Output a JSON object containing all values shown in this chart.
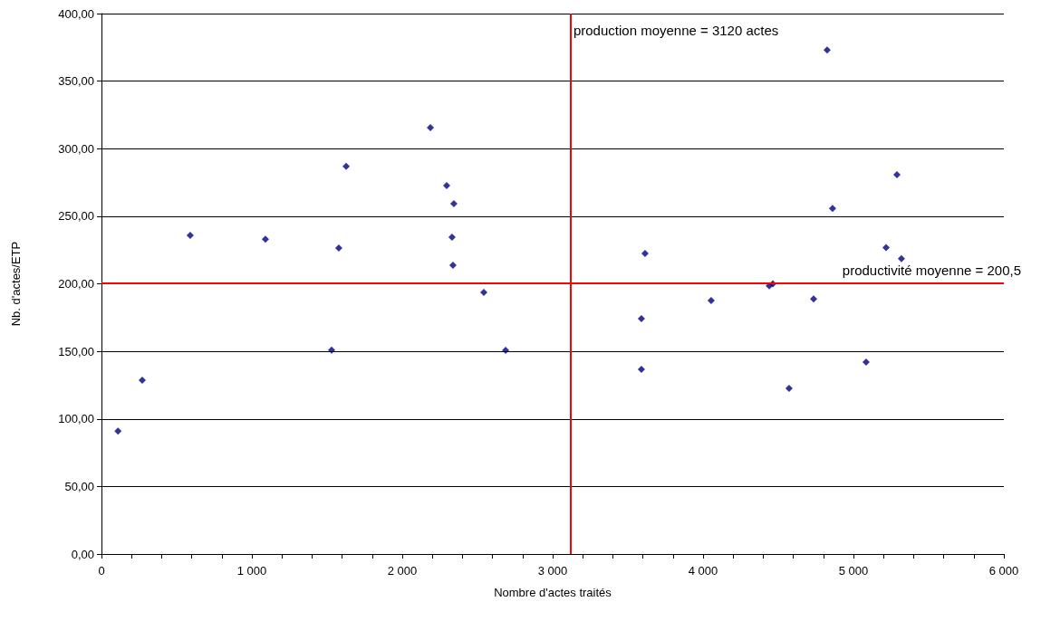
{
  "chart_data": {
    "type": "scatter",
    "xlabel": "Nombre d'actes traités",
    "ylabel": "Nb. d'actes/ETP",
    "x": [
      110,
      271,
      590,
      1090,
      1578,
      1627,
      1530,
      2187,
      2295,
      2343,
      2331,
      2337,
      2542,
      2687,
      3590,
      3590,
      3614,
      4054,
      4440,
      4464,
      4572,
      4735,
      4825,
      4861,
      5084,
      5217,
      5289,
      5319
    ],
    "series": [
      {
        "color": "#000080",
        "values": [
          91,
          128.6,
          235.8,
          233,
          226.5,
          287,
          151,
          315.6,
          272.7,
          259.3,
          234.5,
          213.7,
          193.6,
          150.7,
          136.7,
          174.2,
          222.5,
          187.6,
          198.5,
          200,
          122.6,
          188.7,
          373,
          255.8,
          142,
          226.8,
          280.7,
          218.6
        ]
      }
    ],
    "xlim": [
      0,
      6000
    ],
    "xticks": [
      {
        "value": 0,
        "label": "0"
      },
      {
        "value": 200,
        "label": null
      },
      {
        "value": 400,
        "label": null
      },
      {
        "value": 600,
        "label": null
      },
      {
        "value": 800,
        "label": null
      },
      {
        "value": 1000,
        "label": "1 000"
      },
      {
        "value": 1200,
        "label": null
      },
      {
        "value": 1400,
        "label": null
      },
      {
        "value": 1600,
        "label": null
      },
      {
        "value": 1800,
        "label": null
      },
      {
        "value": 2000,
        "label": "2 000"
      },
      {
        "value": 2200,
        "label": null
      },
      {
        "value": 2400,
        "label": null
      },
      {
        "value": 2600,
        "label": null
      },
      {
        "value": 2800,
        "label": null
      },
      {
        "value": 3000,
        "label": "3 000"
      },
      {
        "value": 3200,
        "label": null
      },
      {
        "value": 3400,
        "label": null
      },
      {
        "value": 3600,
        "label": null
      },
      {
        "value": 3800,
        "label": null
      },
      {
        "value": 4000,
        "label": "4 000"
      },
      {
        "value": 4200,
        "label": null
      },
      {
        "value": 4400,
        "label": null
      },
      {
        "value": 4600,
        "label": null
      },
      {
        "value": 4800,
        "label": null
      },
      {
        "value": 5000,
        "label": "5 000"
      },
      {
        "value": 5200,
        "label": null
      },
      {
        "value": 5400,
        "label": null
      },
      {
        "value": 5600,
        "label": null
      },
      {
        "value": 5800,
        "label": null
      },
      {
        "value": 6000,
        "label": "6 000"
      }
    ],
    "ylim": [
      0,
      400
    ],
    "yticks": [
      {
        "value": 0,
        "label": "0,00"
      },
      {
        "value": 50,
        "label": "50,00"
      },
      {
        "value": 100,
        "label": "100,00"
      },
      {
        "value": 150,
        "label": "150,00"
      },
      {
        "value": 200,
        "label": "200,00"
      },
      {
        "value": 250,
        "label": "250,00"
      },
      {
        "value": 300,
        "label": "300,00"
      },
      {
        "value": 350,
        "label": "350,00"
      },
      {
        "value": 400,
        "label": "400,00"
      }
    ],
    "grid": "y",
    "marker": "diamond",
    "ref_lines": [
      {
        "axis": "x",
        "value": 3120,
        "label": "production moyenne = 3120 actes",
        "color": "#ff0000"
      },
      {
        "axis": "y",
        "value": 200.5,
        "label": "productivité moyenne = 200,5",
        "color": "#ff0000"
      }
    ]
  }
}
